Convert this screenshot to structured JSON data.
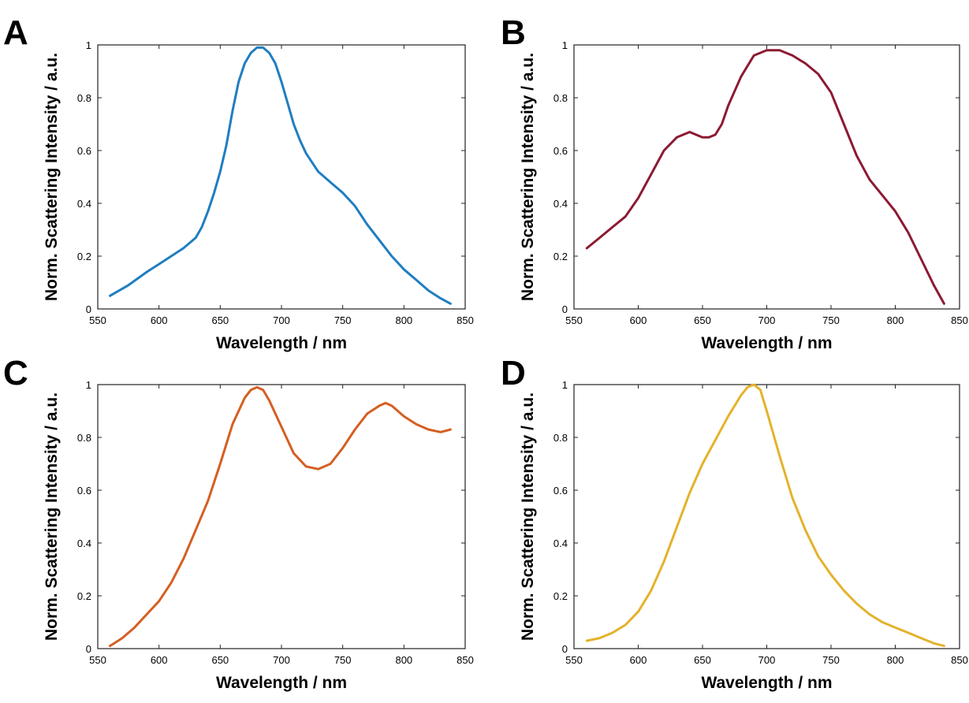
{
  "chart_data": [
    {
      "panel": "A",
      "type": "line",
      "xlabel": "Wavelength / nm",
      "ylabel": "Norm. Scattering Intensity / a.u.",
      "xlim": [
        550,
        850
      ],
      "ylim": [
        0,
        1
      ],
      "xticks": [
        "550",
        "600",
        "650",
        "700",
        "750",
        "800",
        "850"
      ],
      "yticks": [
        "0",
        "0.2",
        "0.4",
        "0.6",
        "0.8",
        "1"
      ],
      "grid": false,
      "color": "#1f7ec0",
      "series": [
        {
          "x": [
            560,
            575,
            590,
            600,
            610,
            620,
            630,
            635,
            640,
            645,
            650,
            655,
            660,
            665,
            670,
            675,
            680,
            685,
            690,
            695,
            700,
            705,
            710,
            715,
            720,
            730,
            740,
            750,
            760,
            770,
            780,
            790,
            800,
            810,
            820,
            830,
            838
          ],
          "y": [
            0.05,
            0.09,
            0.14,
            0.17,
            0.2,
            0.23,
            0.27,
            0.31,
            0.37,
            0.44,
            0.52,
            0.62,
            0.75,
            0.86,
            0.93,
            0.97,
            0.99,
            0.99,
            0.97,
            0.93,
            0.86,
            0.78,
            0.7,
            0.64,
            0.59,
            0.52,
            0.48,
            0.44,
            0.39,
            0.32,
            0.26,
            0.2,
            0.15,
            0.11,
            0.07,
            0.04,
            0.02
          ]
        }
      ]
    },
    {
      "panel": "B",
      "type": "line",
      "xlabel": "Wavelength / nm",
      "ylabel": "Norm. Scattering Intensity / a.u.",
      "xlim": [
        550,
        850
      ],
      "ylim": [
        0,
        1
      ],
      "xticks": [
        "550",
        "600",
        "650",
        "700",
        "750",
        "800",
        "850"
      ],
      "yticks": [
        "0",
        "0.2",
        "0.4",
        "0.6",
        "0.8",
        "1"
      ],
      "grid": false,
      "color": "#8c1a32",
      "series": [
        {
          "x": [
            560,
            570,
            580,
            590,
            600,
            610,
            620,
            630,
            640,
            650,
            655,
            660,
            665,
            670,
            680,
            690,
            700,
            710,
            720,
            730,
            740,
            750,
            760,
            770,
            780,
            790,
            800,
            810,
            820,
            830,
            838
          ],
          "y": [
            0.23,
            0.27,
            0.31,
            0.35,
            0.42,
            0.51,
            0.6,
            0.65,
            0.67,
            0.65,
            0.65,
            0.66,
            0.7,
            0.77,
            0.88,
            0.96,
            0.98,
            0.98,
            0.96,
            0.93,
            0.89,
            0.82,
            0.7,
            0.58,
            0.49,
            0.43,
            0.37,
            0.29,
            0.19,
            0.09,
            0.02
          ]
        }
      ]
    },
    {
      "panel": "C",
      "type": "line",
      "xlabel": "Wavelength / nm",
      "ylabel": "Norm. Scattering Intensity / a.u.",
      "xlim": [
        550,
        850
      ],
      "ylim": [
        0,
        1
      ],
      "xticks": [
        "550",
        "600",
        "650",
        "700",
        "750",
        "800",
        "850"
      ],
      "yticks": [
        "0",
        "0.2",
        "0.4",
        "0.6",
        "0.8",
        "1"
      ],
      "grid": false,
      "color": "#d45f22",
      "series": [
        {
          "x": [
            560,
            570,
            580,
            590,
            600,
            610,
            620,
            630,
            640,
            650,
            660,
            670,
            675,
            680,
            685,
            690,
            700,
            710,
            720,
            730,
            740,
            750,
            760,
            770,
            780,
            785,
            790,
            800,
            810,
            820,
            830,
            838
          ],
          "y": [
            0.01,
            0.04,
            0.08,
            0.13,
            0.18,
            0.25,
            0.34,
            0.45,
            0.56,
            0.7,
            0.85,
            0.95,
            0.98,
            0.99,
            0.98,
            0.94,
            0.84,
            0.74,
            0.69,
            0.68,
            0.7,
            0.76,
            0.83,
            0.89,
            0.92,
            0.93,
            0.92,
            0.88,
            0.85,
            0.83,
            0.82,
            0.83
          ]
        }
      ]
    },
    {
      "panel": "D",
      "type": "line",
      "xlabel": "Wavelength / nm",
      "ylabel": "Norm. Scattering Intensity / a.u.",
      "xlim": [
        550,
        850
      ],
      "ylim": [
        0,
        1
      ],
      "xticks": [
        "550",
        "600",
        "650",
        "700",
        "750",
        "800",
        "850"
      ],
      "yticks": [
        "0",
        "0.2",
        "0.4",
        "0.6",
        "0.8",
        "1"
      ],
      "grid": false,
      "color": "#e4b22b",
      "series": [
        {
          "x": [
            560,
            570,
            580,
            590,
            600,
            610,
            620,
            630,
            640,
            650,
            660,
            670,
            680,
            685,
            690,
            695,
            700,
            710,
            720,
            730,
            740,
            750,
            760,
            770,
            780,
            790,
            800,
            810,
            820,
            830,
            838
          ],
          "y": [
            0.03,
            0.04,
            0.06,
            0.09,
            0.14,
            0.22,
            0.33,
            0.46,
            0.59,
            0.7,
            0.79,
            0.88,
            0.96,
            0.99,
            1.0,
            0.98,
            0.9,
            0.73,
            0.57,
            0.45,
            0.35,
            0.28,
            0.22,
            0.17,
            0.13,
            0.1,
            0.08,
            0.06,
            0.04,
            0.02,
            0.01
          ]
        }
      ]
    }
  ]
}
